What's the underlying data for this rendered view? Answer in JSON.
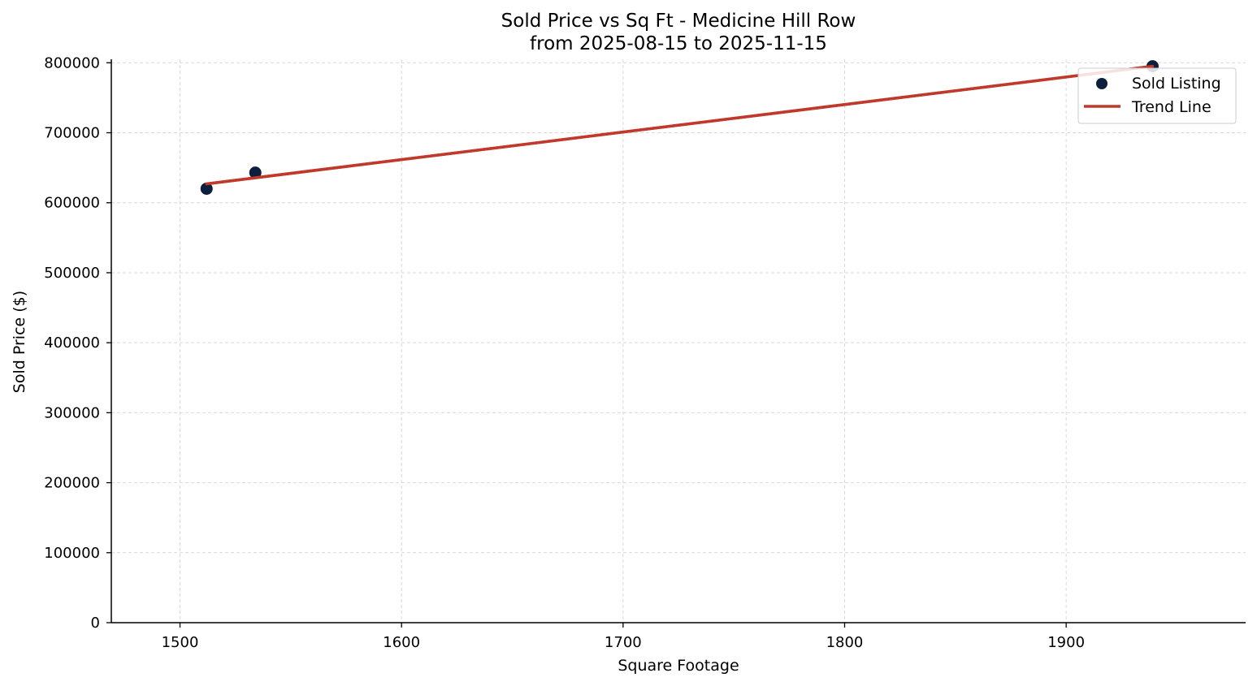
{
  "chart_data": {
    "type": "scatter",
    "title": "Sold Price vs Sq Ft - Medicine Hill Row",
    "subtitle": "from 2025-08-15 to 2025-11-15",
    "xlabel": "Square Footage",
    "ylabel": "Sold Price ($)",
    "xlim": [
      1469,
      1981
    ],
    "ylim": [
      0,
      805000
    ],
    "xticks": [
      1500,
      1600,
      1700,
      1800,
      1900
    ],
    "yticks": [
      0,
      100000,
      200000,
      300000,
      400000,
      500000,
      600000,
      700000,
      800000
    ],
    "grid": true,
    "legend_position": "top-right",
    "series": [
      {
        "name": "Sold Listing",
        "kind": "scatter",
        "color": "#0d1f3c",
        "points": [
          {
            "x": 1512,
            "y": 620000
          },
          {
            "x": 1534,
            "y": 643000
          },
          {
            "x": 1939,
            "y": 795000
          }
        ]
      },
      {
        "name": "Trend Line",
        "kind": "line",
        "color": "#c0392b",
        "points": [
          {
            "x": 1512,
            "y": 627000
          },
          {
            "x": 1939,
            "y": 795000
          }
        ]
      }
    ]
  }
}
